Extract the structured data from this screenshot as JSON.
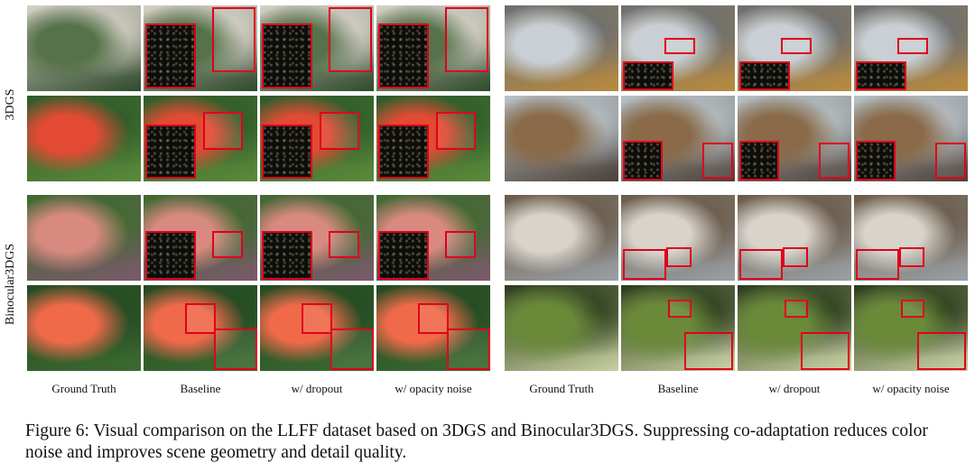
{
  "row_labels": {
    "top": "3DGS",
    "bottom": "Binocular3DGS"
  },
  "column_labels": [
    "Ground Truth",
    "Baseline",
    "w/ dropout",
    "w/ opacity noise"
  ],
  "caption": {
    "text": "Figure 6: Visual comparison on the LLFF dataset based on 3DGS and Binocular3DGS. Suppressing co-adaptation reduces color noise and improves scene geometry and detail quality."
  },
  "scenes": [
    {
      "id": "fern",
      "colors": [
        "#56724a",
        "#d8d2c8",
        "#2f4a2c"
      ]
    },
    {
      "id": "room",
      "colors": [
        "#c9cfd4",
        "#6a6e72",
        "#b88a3e"
      ]
    },
    {
      "id": "flower",
      "colors": [
        "#e24a33",
        "#2f5a2a",
        "#5a8a3a"
      ]
    },
    {
      "id": "horns",
      "colors": [
        "#8a6a48",
        "#b9c3c8",
        "#4b4038"
      ]
    },
    {
      "id": "orchids",
      "colors": [
        "#d98a80",
        "#3f6a2f",
        "#7a5a6a"
      ]
    },
    {
      "id": "trex",
      "colors": [
        "#d8d4cc",
        "#6a5a48",
        "#9aa0a4"
      ]
    },
    {
      "id": "leaves_flower",
      "colors": [
        "#f06a4a",
        "#244a22",
        "#3c6a30"
      ]
    },
    {
      "id": "leaves",
      "colors": [
        "#6a8a3a",
        "#2a3a1a",
        "#c8d0a0"
      ]
    }
  ],
  "accent": "#e0001b"
}
